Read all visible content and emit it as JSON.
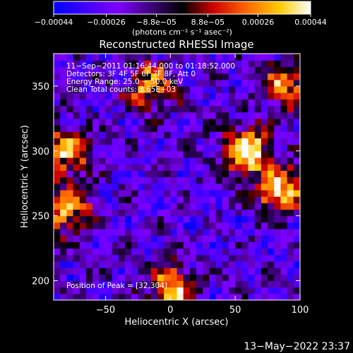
{
  "chart_data": {
    "type": "heatmap",
    "title": "Reconstructed RHESSI Image",
    "xlabel": "Heliocentric X (arcsec)",
    "ylabel": "Heliocentric Y (arcsec)",
    "xlim": [
      -90,
      100
    ],
    "ylim": [
      185,
      375
    ],
    "x_ticks": [
      {
        "value": -50,
        "label": "−50"
      },
      {
        "value": 0,
        "label": "0"
      },
      {
        "value": 50,
        "label": "50"
      },
      {
        "value": 100,
        "label": "100"
      }
    ],
    "y_ticks": [
      {
        "value": 200,
        "label": "200"
      },
      {
        "value": 250,
        "label": "250"
      },
      {
        "value": 300,
        "label": "300"
      },
      {
        "value": 350,
        "label": "350"
      }
    ],
    "colorbar": {
      "range": [
        -0.00044,
        0.00044
      ],
      "tick_labels": [
        "−0.00044",
        "−0.00026",
        "−8.8e−05",
        "8.8e−05",
        "0.00026",
        "0.00044"
      ],
      "tick_values": [
        -0.00044,
        -0.00026,
        -8.8e-05,
        8.8e-05,
        0.00026,
        0.00044
      ],
      "units_label": "(photons cm⁻² s⁻¹ asec⁻²)",
      "colors": [
        "#0000ff",
        "#7f00ff",
        "#000000",
        "#cc0000",
        "#ff6600",
        "#ffcc00",
        "#ffffff"
      ]
    },
    "annotations": [
      "11−Sep−2011 01:16:44.000 to 01:18:52.000",
      "Detectors: 3F 4F 5F 6F 7F 8F, Att 0",
      "Energy Range: 25.0 − 50.0 keV",
      "Clean    Total counts: 3.65E+03"
    ],
    "peak_label": "Position of Peak = [32,304]",
    "peak": {
      "x": 32,
      "y": 304
    },
    "bright_regions": [
      {
        "x": 58,
        "y": 300,
        "value": 0.00044
      },
      {
        "x": 85,
        "y": 270,
        "value": 0.0004
      },
      {
        "x": -82,
        "y": 300,
        "value": 0.0003
      },
      {
        "x": -78,
        "y": 255,
        "value": 0.00032
      },
      {
        "x": 0,
        "y": 195,
        "value": 0.0003
      },
      {
        "x": -15,
        "y": 350,
        "value": 0.00022
      },
      {
        "x": 90,
        "y": 350,
        "value": 0.00024
      }
    ]
  },
  "footer_timestamp": "13−May−2022 23:37"
}
